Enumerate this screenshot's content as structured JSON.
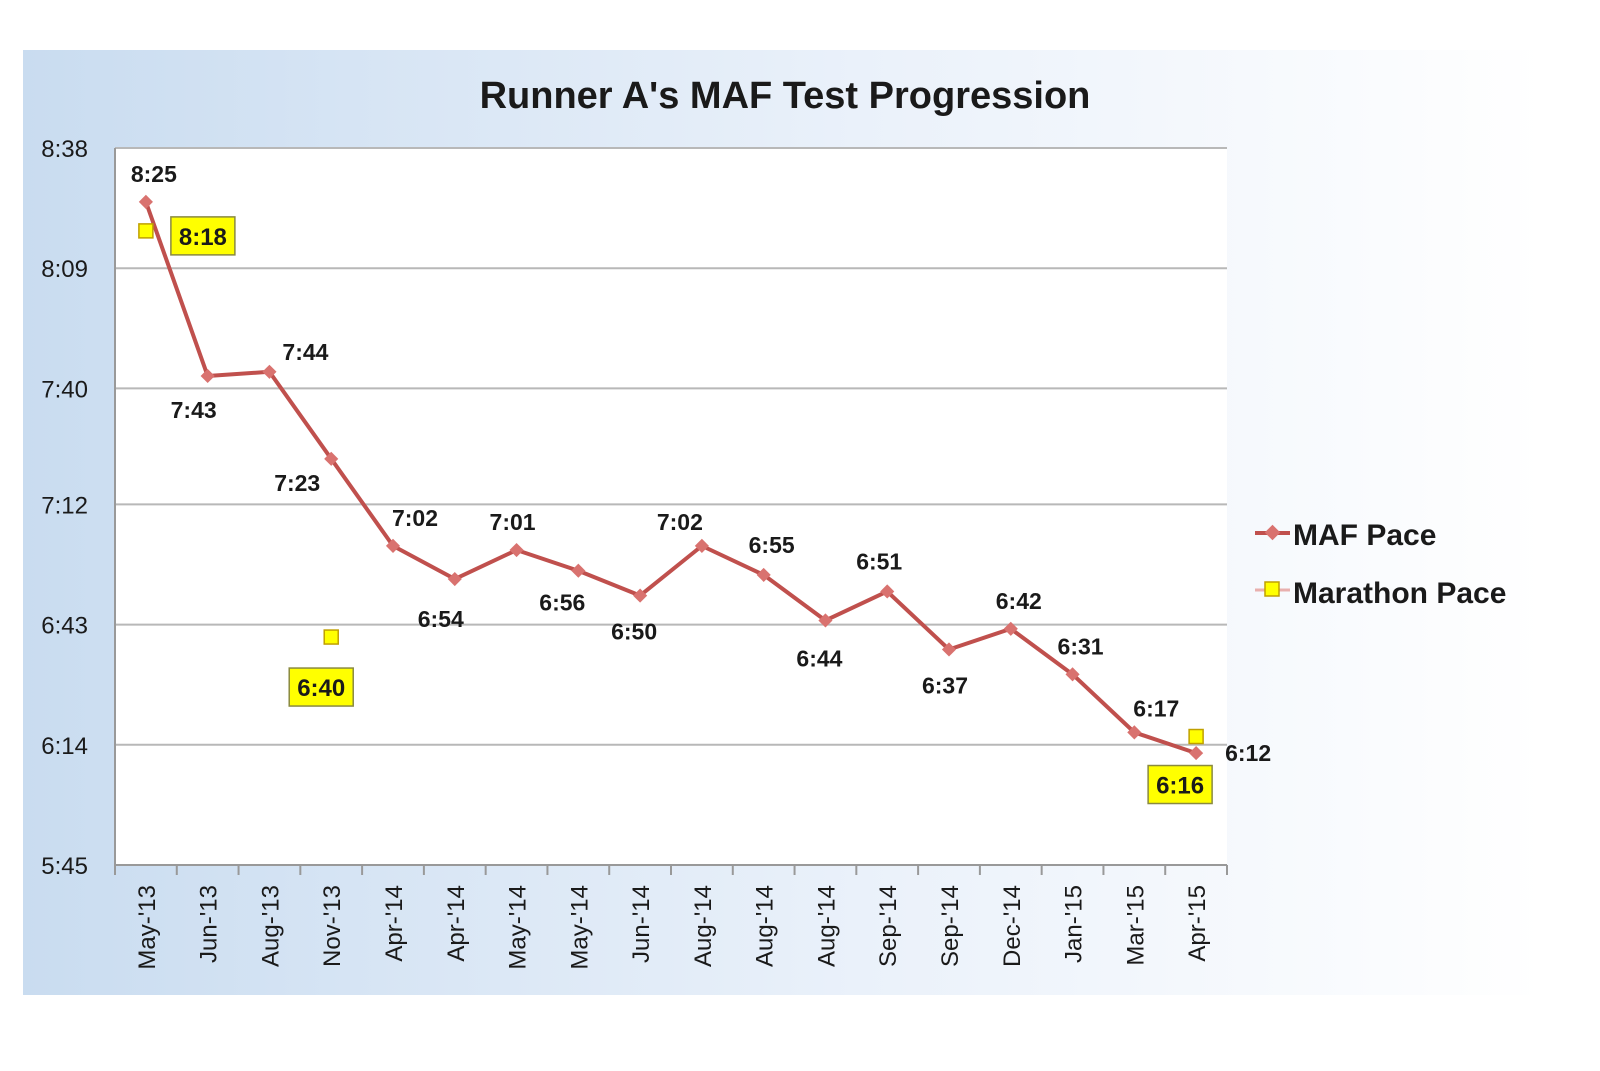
{
  "chart_data": {
    "type": "line",
    "title": "Runner A's MAF Test Progression",
    "xlabel": "",
    "ylabel": "",
    "categories": [
      "May-'13",
      "Jun-'13",
      "Aug-'13",
      "Nov-'13",
      "Apr-'14",
      "Apr-'14",
      "May-'14",
      "May-'14",
      "Jun-'14",
      "Aug-'14",
      "Aug-'14",
      "Aug-'14",
      "Sep-'14",
      "Sep-'14",
      "Dec-'14",
      "Jan-'15",
      "Mar-'15",
      "Apr-'15"
    ],
    "y_unit": "pace (min:sec per mile)",
    "ylim": [
      "5:45",
      "8:38"
    ],
    "y_ticks": [
      "5:45",
      "6:14",
      "6:43",
      "7:12",
      "7:40",
      "8:09",
      "8:38"
    ],
    "grid": true,
    "legend_position": "right",
    "series": [
      {
        "name": "MAF Pace",
        "color": "#c0504d",
        "values": [
          "8:25",
          "7:43",
          "7:44",
          "7:23",
          "7:02",
          "6:54",
          "7:01",
          "6:56",
          "6:50",
          "7:02",
          "6:55",
          "6:44",
          "6:51",
          "6:37",
          "6:42",
          "6:31",
          "6:17",
          "6:12"
        ]
      },
      {
        "name": "Marathon Pace",
        "color": "#ffff00",
        "values": [
          "8:18",
          null,
          null,
          "6:40",
          null,
          null,
          null,
          null,
          null,
          null,
          null,
          null,
          null,
          null,
          null,
          null,
          null,
          "6:16"
        ]
      }
    ]
  }
}
